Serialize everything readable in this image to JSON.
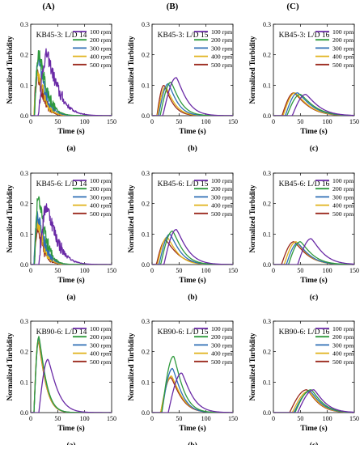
{
  "column_headers": [
    "(A)",
    "(B)",
    "(C)"
  ],
  "colors": {
    "100 rpm": "#6a2aa6",
    "200 rpm": "#2f9a3d",
    "300 rpm": "#2f6fb5",
    "400 rpm": "#e0b21a",
    "500 rpm": "#9b2a1e"
  },
  "chart_data": [
    {
      "type": "line",
      "title": "KB45-3: L/D 14",
      "sublabel": "(a)",
      "xlabel": "Time (s)",
      "ylabel": "Normalized Turbidity",
      "xlim": [
        0,
        150
      ],
      "ylim": [
        0,
        0.3
      ],
      "xticks": [
        0,
        50,
        100,
        150
      ],
      "yticks": [
        0,
        0.1,
        0.2,
        0.3
      ],
      "noisy": true,
      "series": [
        {
          "name": "100 rpm",
          "peak_x": 30,
          "peak_y": 0.2,
          "onset": 14,
          "decay": 24
        },
        {
          "name": "200 rpm",
          "peak_x": 15,
          "peak_y": 0.205,
          "onset": 7,
          "decay": 17
        },
        {
          "name": "300 rpm",
          "peak_x": 14,
          "peak_y": 0.18,
          "onset": 7,
          "decay": 16
        },
        {
          "name": "400 rpm",
          "peak_x": 12,
          "peak_y": 0.15,
          "onset": 6,
          "decay": 15
        },
        {
          "name": "500 rpm",
          "peak_x": 12,
          "peak_y": 0.135,
          "onset": 6,
          "decay": 14
        }
      ]
    },
    {
      "type": "line",
      "title": "KB45-3: L/D 15",
      "sublabel": "(b)",
      "xlabel": "Time (s)",
      "ylabel": "Normalized Turbidity",
      "xlim": [
        0,
        150
      ],
      "ylim": [
        0,
        0.3
      ],
      "xticks": [
        0,
        50,
        100,
        150
      ],
      "yticks": [
        0,
        0.1,
        0.2,
        0.3
      ],
      "noisy": false,
      "series": [
        {
          "name": "100 rpm",
          "peak_x": 45,
          "peak_y": 0.125,
          "onset": 20,
          "decay": 22
        },
        {
          "name": "200 rpm",
          "peak_x": 35,
          "peak_y": 0.11,
          "onset": 15,
          "decay": 20
        },
        {
          "name": "300 rpm",
          "peak_x": 30,
          "peak_y": 0.105,
          "onset": 12,
          "decay": 19
        },
        {
          "name": "400 rpm",
          "peak_x": 25,
          "peak_y": 0.095,
          "onset": 10,
          "decay": 19
        },
        {
          "name": "500 rpm",
          "peak_x": 22,
          "peak_y": 0.1,
          "onset": 9,
          "decay": 18
        }
      ]
    },
    {
      "type": "line",
      "title": "KB45-3: L/D 16",
      "sublabel": "(c)",
      "xlabel": "Time (s)",
      "ylabel": "Normalized Turbidity",
      "xlim": [
        0,
        150
      ],
      "ylim": [
        0,
        0.3
      ],
      "xticks": [
        0,
        50,
        100,
        150
      ],
      "yticks": [
        0,
        0.1,
        0.2,
        0.3
      ],
      "noisy": false,
      "series": [
        {
          "name": "100 rpm",
          "peak_x": 60,
          "peak_y": 0.07,
          "onset": 35,
          "decay": 28
        },
        {
          "name": "200 rpm",
          "peak_x": 50,
          "peak_y": 0.07,
          "onset": 25,
          "decay": 30
        },
        {
          "name": "300 rpm",
          "peak_x": 45,
          "peak_y": 0.075,
          "onset": 22,
          "decay": 30
        },
        {
          "name": "400 rpm",
          "peak_x": 40,
          "peak_y": 0.075,
          "onset": 18,
          "decay": 30
        },
        {
          "name": "500 rpm",
          "peak_x": 38,
          "peak_y": 0.075,
          "onset": 16,
          "decay": 30
        }
      ]
    },
    {
      "type": "line",
      "title": "KB45-6: L/D 14",
      "sublabel": "(a)",
      "xlabel": "Time (s)",
      "ylabel": "Normalized Turbidity",
      "xlim": [
        0,
        150
      ],
      "ylim": [
        0,
        0.3
      ],
      "xticks": [
        0,
        50,
        100,
        150
      ],
      "yticks": [
        0,
        0.1,
        0.2,
        0.3
      ],
      "noisy": true,
      "series": [
        {
          "name": "100 rpm",
          "peak_x": 30,
          "peak_y": 0.19,
          "onset": 15,
          "decay": 22
        },
        {
          "name": "200 rpm",
          "peak_x": 14,
          "peak_y": 0.225,
          "onset": 7,
          "decay": 15
        },
        {
          "name": "300 rpm",
          "peak_x": 13,
          "peak_y": 0.16,
          "onset": 6,
          "decay": 15
        },
        {
          "name": "400 rpm",
          "peak_x": 12,
          "peak_y": 0.14,
          "onset": 6,
          "decay": 14
        },
        {
          "name": "500 rpm",
          "peak_x": 12,
          "peak_y": 0.11,
          "onset": 6,
          "decay": 14
        }
      ]
    },
    {
      "type": "line",
      "title": "KB45-6: L/D 15",
      "sublabel": "(b)",
      "xlabel": "Time (s)",
      "ylabel": "Normalized Turbidity",
      "xlim": [
        0,
        150
      ],
      "ylim": [
        0,
        0.3
      ],
      "xticks": [
        0,
        50,
        100,
        150
      ],
      "yticks": [
        0,
        0.1,
        0.2,
        0.3
      ],
      "noisy": false,
      "series": [
        {
          "name": "100 rpm",
          "peak_x": 45,
          "peak_y": 0.115,
          "onset": 22,
          "decay": 24
        },
        {
          "name": "200 rpm",
          "peak_x": 38,
          "peak_y": 0.11,
          "onset": 16,
          "decay": 22
        },
        {
          "name": "300 rpm",
          "peak_x": 33,
          "peak_y": 0.1,
          "onset": 13,
          "decay": 22
        },
        {
          "name": "400 rpm",
          "peak_x": 28,
          "peak_y": 0.09,
          "onset": 10,
          "decay": 22
        },
        {
          "name": "500 rpm",
          "peak_x": 25,
          "peak_y": 0.08,
          "onset": 8,
          "decay": 26
        }
      ]
    },
    {
      "type": "line",
      "title": "KB45-6: L/D 16",
      "sublabel": "(c)",
      "xlabel": "Time (s)",
      "ylabel": "Normalized Turbidity",
      "xlim": [
        0,
        150
      ],
      "ylim": [
        0,
        0.3
      ],
      "xticks": [
        0,
        50,
        100,
        150
      ],
      "yticks": [
        0,
        0.1,
        0.2,
        0.3
      ],
      "noisy": false,
      "series": [
        {
          "name": "100 rpm",
          "peak_x": 70,
          "peak_y": 0.085,
          "onset": 45,
          "decay": 26
        },
        {
          "name": "200 rpm",
          "peak_x": 50,
          "peak_y": 0.075,
          "onset": 28,
          "decay": 26
        },
        {
          "name": "300 rpm",
          "peak_x": 45,
          "peak_y": 0.07,
          "onset": 24,
          "decay": 26
        },
        {
          "name": "400 rpm",
          "peak_x": 42,
          "peak_y": 0.075,
          "onset": 20,
          "decay": 26
        },
        {
          "name": "500 rpm",
          "peak_x": 38,
          "peak_y": 0.075,
          "onset": 15,
          "decay": 28
        }
      ]
    },
    {
      "type": "line",
      "title": "KB90-6: L/D 14",
      "sublabel": "(a)",
      "xlabel": "Time (s)",
      "ylabel": "Normalized Turbidity",
      "xlim": [
        0,
        150
      ],
      "ylim": [
        0,
        0.3
      ],
      "xticks": [
        0,
        50,
        100,
        150
      ],
      "yticks": [
        0,
        0.1,
        0.2,
        0.3
      ],
      "noisy": false,
      "series": [
        {
          "name": "100 rpm",
          "peak_x": 32,
          "peak_y": 0.175,
          "onset": 15,
          "decay": 20
        },
        {
          "name": "200 rpm",
          "peak_x": 15,
          "peak_y": 0.25,
          "onset": 6,
          "decay": 15
        },
        {
          "name": "300 rpm",
          "peak_x": 15,
          "peak_y": 0.245,
          "onset": 6,
          "decay": 15
        },
        {
          "name": "400 rpm",
          "peak_x": 14,
          "peak_y": 0.24,
          "onset": 6,
          "decay": 15
        },
        {
          "name": "500 rpm",
          "peak_x": 14,
          "peak_y": 0.235,
          "onset": 6,
          "decay": 15
        }
      ]
    },
    {
      "type": "line",
      "title": "KB90-6: L/D 15",
      "sublabel": "(b)",
      "xlabel": "Time (s)",
      "ylabel": "Normalized Turbidity",
      "xlim": [
        0,
        150
      ],
      "ylim": [
        0,
        0.3
      ],
      "xticks": [
        0,
        50,
        100,
        150
      ],
      "yticks": [
        0,
        0.1,
        0.2,
        0.3
      ],
      "noisy": false,
      "series": [
        {
          "name": "100 rpm",
          "peak_x": 55,
          "peak_y": 0.13,
          "onset": 30,
          "decay": 22
        },
        {
          "name": "200 rpm",
          "peak_x": 40,
          "peak_y": 0.185,
          "onset": 18,
          "decay": 20
        },
        {
          "name": "300 rpm",
          "peak_x": 38,
          "peak_y": 0.145,
          "onset": 18,
          "decay": 20
        },
        {
          "name": "400 rpm",
          "peak_x": 36,
          "peak_y": 0.12,
          "onset": 16,
          "decay": 22
        },
        {
          "name": "500 rpm",
          "peak_x": 35,
          "peak_y": 0.115,
          "onset": 16,
          "decay": 22
        }
      ]
    },
    {
      "type": "line",
      "title": "KB90-6: L/D 16",
      "sublabel": "(c)",
      "xlabel": "Time (s)",
      "ylabel": "Normalized Turbidity",
      "xlim": [
        0,
        150
      ],
      "ylim": [
        0,
        0.3
      ],
      "xticks": [
        0,
        50,
        100,
        150
      ],
      "yticks": [
        0,
        0.1,
        0.2,
        0.3
      ],
      "noisy": false,
      "series": [
        {
          "name": "100 rpm",
          "peak_x": 75,
          "peak_y": 0.075,
          "onset": 45,
          "decay": 24
        },
        {
          "name": "200 rpm",
          "peak_x": 70,
          "peak_y": 0.075,
          "onset": 40,
          "decay": 24
        },
        {
          "name": "300 rpm",
          "peak_x": 68,
          "peak_y": 0.07,
          "onset": 38,
          "decay": 24
        },
        {
          "name": "400 rpm",
          "peak_x": 65,
          "peak_y": 0.07,
          "onset": 35,
          "decay": 24
        },
        {
          "name": "500 rpm",
          "peak_x": 62,
          "peak_y": 0.075,
          "onset": 30,
          "decay": 24
        }
      ]
    }
  ]
}
